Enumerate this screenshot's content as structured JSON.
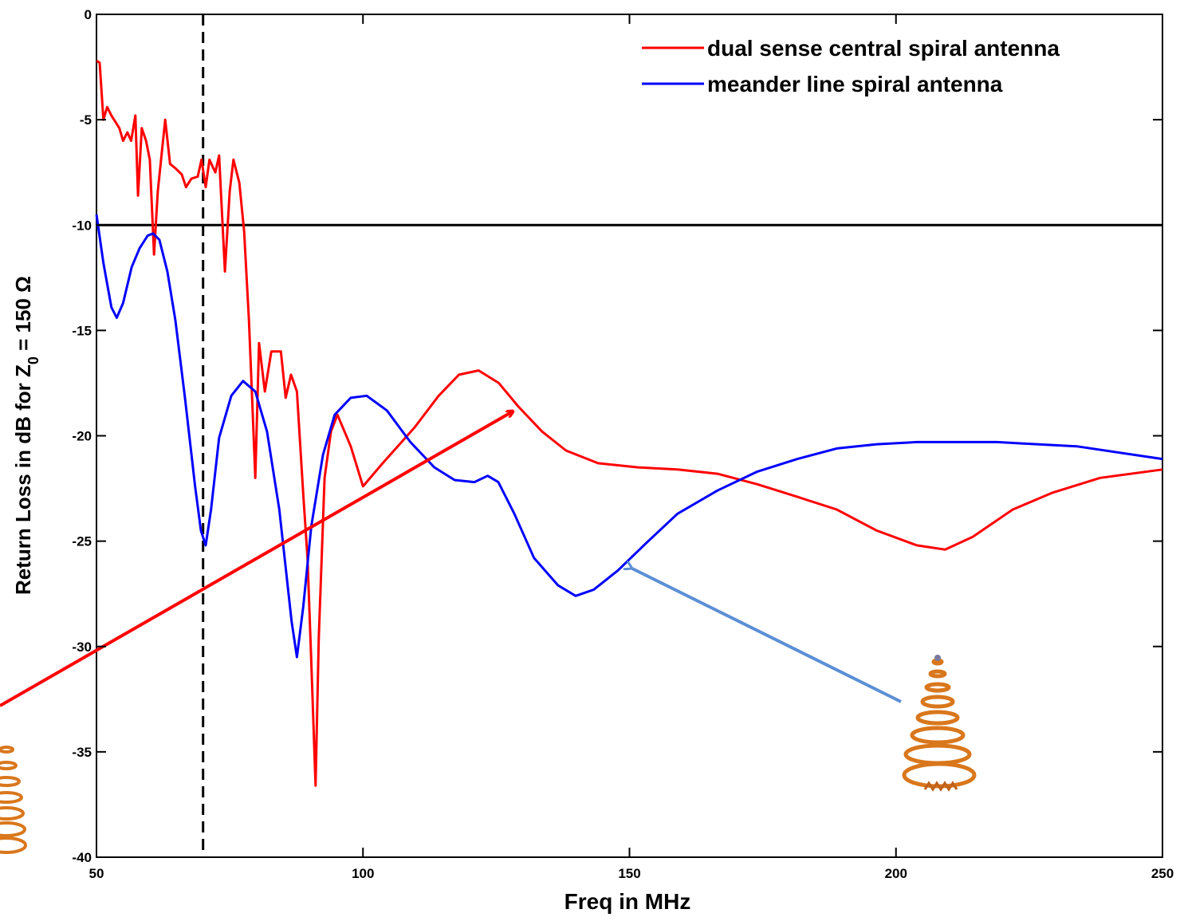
{
  "chart_data": {
    "type": "line",
    "xlabel": "Freq in MHz",
    "ylabel_parts": [
      "Return Loss in dB for Z",
      "0",
      " = 150 Ω"
    ],
    "xlim": [
      50,
      250
    ],
    "ylim": [
      -40,
      0
    ],
    "xticks": [
      50,
      100,
      150,
      200,
      250
    ],
    "yticks": [
      0,
      -5,
      -10,
      -15,
      -20,
      -25,
      -30,
      -35,
      -40
    ],
    "reference_lines": {
      "hline": -10,
      "vline": 70
    },
    "legend": "upper right",
    "series": [
      {
        "name": "dual sense central spiral antenna",
        "color": "#ff0000",
        "x": [
          50,
          50.6,
          51.3,
          52,
          52.8,
          54.3,
          55,
          55.8,
          56.5,
          57.3,
          57.8,
          58.5,
          59.3,
          60,
          60.8,
          61.5,
          62.9,
          63.8,
          64.8,
          66,
          66.8,
          67.8,
          69,
          69.7,
          70.5,
          71.2,
          72.3,
          73,
          74.1,
          75,
          75.7,
          76.8,
          77.7,
          78.6,
          79.2,
          79.8,
          80.5,
          81.6,
          82.8,
          84.6,
          85.5,
          86.5,
          87.6,
          88.8,
          89.6,
          90.3,
          91.1,
          91.7,
          92.8,
          94,
          95.2,
          97.7,
          100,
          103.7,
          109.7,
          114.2,
          118,
          121.7,
          125.5,
          129.1,
          133.6,
          138.1,
          144.1,
          151.6,
          159,
          166.5,
          174,
          181.5,
          188.9,
          196.4,
          203.9,
          209.2,
          214.4,
          221.9,
          229.4,
          238.3,
          250
        ],
        "values": [
          -2.2,
          -2.3,
          -5.0,
          -4.4,
          -4.8,
          -5.4,
          -6.0,
          -5.6,
          -6.0,
          -4.8,
          -8.6,
          -5.4,
          -6.0,
          -6.9,
          -11.4,
          -8.4,
          -5.0,
          -7.1,
          -7.3,
          -7.6,
          -8.2,
          -7.8,
          -7.7,
          -6.9,
          -8.2,
          -6.9,
          -7.5,
          -6.7,
          -12.2,
          -8.4,
          -6.9,
          -8.0,
          -10.3,
          -14.5,
          -18.2,
          -22.0,
          -15.6,
          -17.9,
          -16.0,
          -16.0,
          -18.2,
          -17.1,
          -17.9,
          -22.8,
          -25.8,
          -30.7,
          -36.6,
          -29.6,
          -22.0,
          -19.8,
          -19.0,
          -20.5,
          -22.4,
          -21.3,
          -19.6,
          -18.1,
          -17.1,
          -16.9,
          -17.5,
          -18.6,
          -19.8,
          -20.7,
          -21.3,
          -21.5,
          -21.6,
          -21.8,
          -22.3,
          -22.9,
          -23.5,
          -24.5,
          -25.2,
          -25.4,
          -24.8,
          -23.5,
          -22.7,
          -22.0,
          -21.6
        ]
      },
      {
        "name": "meander line spiral antenna",
        "color": "#0000ff",
        "x": [
          50,
          51.3,
          52.8,
          53.8,
          55,
          56.6,
          58.1,
          59.6,
          60.6,
          61.8,
          63.3,
          64.8,
          66.6,
          68.5,
          69.6,
          70.5,
          71.5,
          73,
          75.3,
          77.5,
          79.8,
          82,
          84.3,
          86.6,
          87.6,
          88.8,
          90.3,
          92.5,
          94.7,
          97.7,
          100.7,
          104.5,
          108.9,
          113.4,
          117.2,
          120.9,
          123.4,
          125.4,
          128.4,
          132.1,
          136.6,
          139.9,
          143.3,
          147.8,
          153.1,
          159,
          166.5,
          174,
          181.5,
          188.9,
          196.4,
          203.9,
          218.9,
          233.9,
          250
        ],
        "values": [
          -9.5,
          -11.8,
          -13.9,
          -14.4,
          -13.7,
          -12.0,
          -11.1,
          -10.5,
          -10.4,
          -10.7,
          -12.2,
          -14.5,
          -18.2,
          -22.4,
          -24.5,
          -25.2,
          -23.5,
          -20.1,
          -18.1,
          -17.4,
          -17.9,
          -19.8,
          -23.5,
          -28.8,
          -30.5,
          -28.1,
          -24.3,
          -20.9,
          -19.0,
          -18.2,
          -18.1,
          -18.8,
          -20.3,
          -21.5,
          -22.1,
          -22.2,
          -21.9,
          -22.2,
          -23.7,
          -25.8,
          -27.1,
          -27.6,
          -27.3,
          -26.4,
          -25.1,
          -23.7,
          -22.6,
          -21.7,
          -21.1,
          -20.6,
          -20.4,
          -20.3,
          -20.3,
          -20.5,
          -21.1
        ]
      }
    ]
  }
}
